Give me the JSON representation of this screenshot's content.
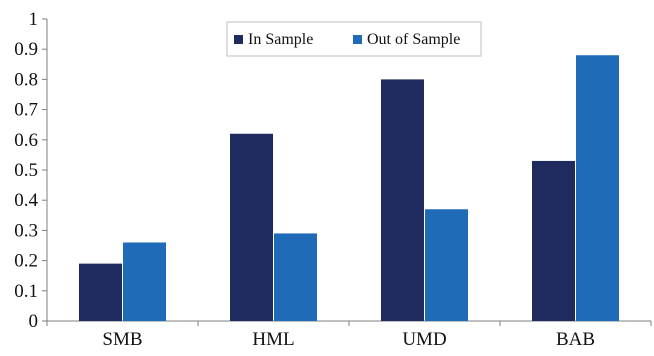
{
  "chart_data": {
    "type": "bar",
    "title": "",
    "xlabel": "",
    "ylabel": "",
    "categories": [
      "SMB",
      "HML",
      "UMD",
      "BAB"
    ],
    "series": [
      {
        "name": "In Sample",
        "values": [
          0.19,
          0.62,
          0.8,
          0.53
        ],
        "color": "#1f2a5e"
      },
      {
        "name": "Out of Sample",
        "values": [
          0.26,
          0.29,
          0.37,
          0.88
        ],
        "color": "#1f6bb8"
      }
    ],
    "ylim": [
      0,
      1
    ],
    "yticks": [
      "0",
      "0.1",
      "0.2",
      "0.3",
      "0.4",
      "0.5",
      "0.6",
      "0.7",
      "0.8",
      "0.9",
      "1"
    ],
    "grid": false,
    "legend_position": "top-center"
  }
}
